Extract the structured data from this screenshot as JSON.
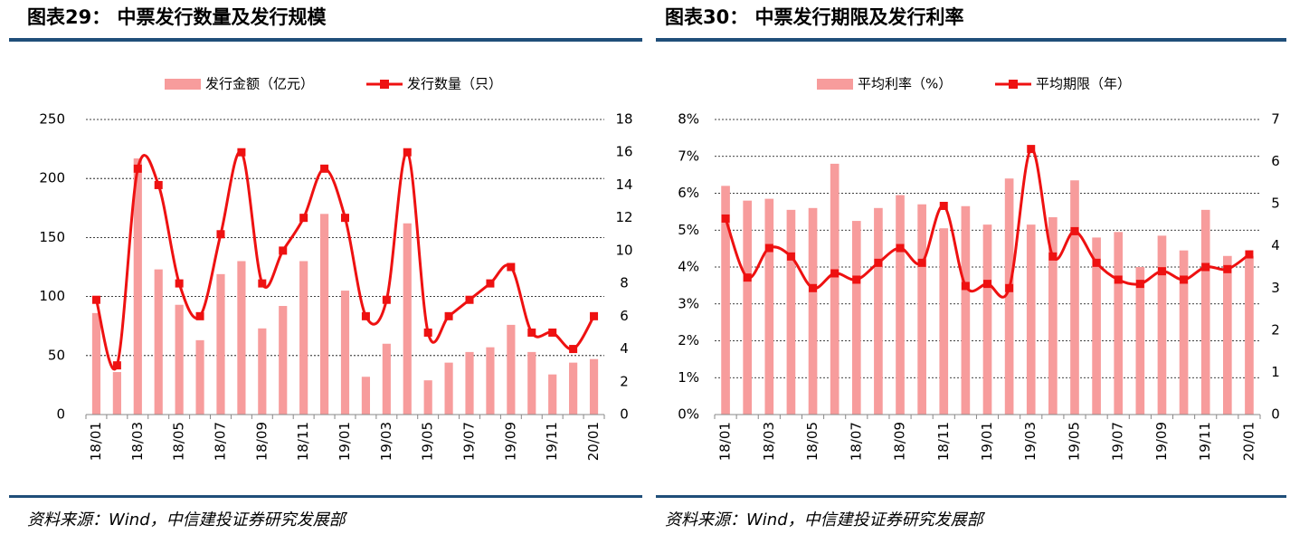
{
  "chart_data": [
    {
      "type": "bar-line",
      "title": "图表29： 中票发行数量及发行规模",
      "source": "资料来源：Wind，中信建投证券研究发展部",
      "categories": [
        "18/01",
        null,
        "18/03",
        null,
        "18/05",
        null,
        "18/07",
        null,
        "18/09",
        null,
        "18/11",
        null,
        "19/01",
        null,
        "19/03",
        null,
        "19/05",
        null,
        "19/07",
        null,
        "19/09",
        null,
        "19/11",
        null,
        "20/01"
      ],
      "series": [
        {
          "name": "发行金额（亿元）",
          "type": "bar",
          "color": "#f79c9c",
          "values": [
            86,
            36,
            217,
            123,
            93,
            63,
            119,
            130,
            73,
            92,
            130,
            170,
            105,
            32,
            60,
            162,
            29,
            44,
            53,
            57,
            76,
            53,
            34,
            44,
            47
          ]
        },
        {
          "name": "发行数量（只）",
          "type": "line",
          "axis": "y2",
          "color": "#ee1111",
          "values": [
            7,
            3,
            15,
            14,
            8,
            6,
            11,
            16,
            8,
            10,
            12,
            15,
            12,
            6,
            7,
            16,
            5,
            6,
            7,
            8,
            9,
            5,
            5,
            4,
            6
          ]
        }
      ],
      "ylim": [
        0,
        250
      ],
      "yticks": [
        0,
        50,
        100,
        150,
        200,
        250
      ],
      "y2lim": [
        0,
        18
      ],
      "y2ticks": [
        0,
        2,
        4,
        6,
        8,
        10,
        12,
        14,
        16,
        18
      ],
      "grid": true
    },
    {
      "type": "bar-line",
      "title": "图表30： 中票发行期限及发行利率",
      "source": "资料来源：Wind，中信建投证券研究发展部",
      "categories": [
        "18/01",
        null,
        "18/03",
        null,
        "18/05",
        null,
        "18/07",
        null,
        "18/09",
        null,
        "18/11",
        null,
        "19/01",
        null,
        "19/03",
        null,
        "19/05",
        null,
        "19/07",
        null,
        "19/09",
        null,
        "19/11",
        null,
        "20/01"
      ],
      "series": [
        {
          "name": "平均利率（%）",
          "type": "bar",
          "color": "#f79c9c",
          "values": [
            6.2,
            5.8,
            5.85,
            5.55,
            5.6,
            6.8,
            5.25,
            5.6,
            5.95,
            5.7,
            5.05,
            5.65,
            5.15,
            6.4,
            5.15,
            5.35,
            6.35,
            4.8,
            4.95,
            4.0,
            4.85,
            4.45,
            5.55,
            4.3,
            4.3
          ]
        },
        {
          "name": "平均期限（年）",
          "type": "line",
          "axis": "y2",
          "color": "#ee1111",
          "values": [
            4.65,
            3.25,
            3.95,
            3.75,
            3.0,
            3.35,
            3.2,
            3.6,
            3.95,
            3.6,
            4.95,
            3.05,
            3.1,
            3.0,
            6.3,
            3.75,
            4.35,
            3.6,
            3.2,
            3.1,
            3.4,
            3.2,
            3.5,
            3.45,
            3.8
          ]
        }
      ],
      "ylim": [
        0,
        8
      ],
      "yticks": [
        {
          "value": 0,
          "label": "0%"
        },
        {
          "value": 1,
          "label": "1%"
        },
        {
          "value": 2,
          "label": "2%"
        },
        {
          "value": 3,
          "label": "3%"
        },
        {
          "value": 4,
          "label": "4%"
        },
        {
          "value": 5,
          "label": "5%"
        },
        {
          "value": 6,
          "label": "6%"
        },
        {
          "value": 7,
          "label": "7%"
        },
        {
          "value": 8,
          "label": "8%"
        }
      ],
      "y2lim": [
        0,
        7
      ],
      "y2ticks": [
        0,
        1,
        2,
        3,
        4,
        5,
        6,
        7
      ],
      "grid": true
    }
  ]
}
